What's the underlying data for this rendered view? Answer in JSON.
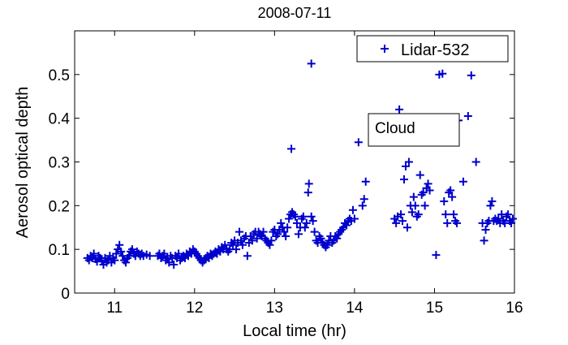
{
  "chart_data": {
    "type": "scatter",
    "title": "2008-07-11",
    "xlabel": "Local time (hr)",
    "ylabel": "Aerosol optical depth",
    "xlim": [
      10.5,
      16
    ],
    "ylim": [
      0,
      0.6
    ],
    "xticks": [
      11,
      12,
      13,
      14,
      15,
      16
    ],
    "yticks": [
      0,
      0.1,
      0.2,
      0.3,
      0.4,
      0.5
    ],
    "xtick_labels": [
      "11",
      "12",
      "13",
      "14",
      "15",
      "16"
    ],
    "ytick_labels": [
      "0",
      "0.1",
      "0.2",
      "0.3",
      "0.4",
      "0.5"
    ],
    "grid": false,
    "legend": {
      "placement": "top-right",
      "entries": [
        "Lidar-532"
      ]
    },
    "annotation": "Cloud",
    "series": [
      {
        "name": "Lidar-532",
        "marker": "+",
        "color": "#0000cc",
        "points": [
          [
            10.66,
            0.08
          ],
          [
            10.68,
            0.075
          ],
          [
            10.7,
            0.085
          ],
          [
            10.72,
            0.08
          ],
          [
            10.74,
            0.09
          ],
          [
            10.76,
            0.078
          ],
          [
            10.78,
            0.072
          ],
          [
            10.8,
            0.085
          ],
          [
            10.82,
            0.08
          ],
          [
            10.84,
            0.075
          ],
          [
            10.86,
            0.065
          ],
          [
            10.88,
            0.08
          ],
          [
            10.9,
            0.07
          ],
          [
            10.92,
            0.075
          ],
          [
            10.94,
            0.085
          ],
          [
            10.96,
            0.07
          ],
          [
            10.98,
            0.08
          ],
          [
            11.0,
            0.075
          ],
          [
            11.02,
            0.09
          ],
          [
            11.04,
            0.1
          ],
          [
            11.06,
            0.11
          ],
          [
            11.08,
            0.095
          ],
          [
            11.1,
            0.085
          ],
          [
            11.12,
            0.075
          ],
          [
            11.14,
            0.07
          ],
          [
            11.16,
            0.08
          ],
          [
            11.18,
            0.085
          ],
          [
            11.2,
            0.095
          ],
          [
            11.22,
            0.1
          ],
          [
            11.24,
            0.09
          ],
          [
            11.26,
            0.085
          ],
          [
            11.28,
            0.095
          ],
          [
            11.3,
            0.09
          ],
          [
            11.32,
            0.085
          ],
          [
            11.34,
            0.09
          ],
          [
            11.36,
            0.085
          ],
          [
            11.4,
            0.088
          ],
          [
            11.44,
            0.085
          ],
          [
            11.54,
            0.085
          ],
          [
            11.56,
            0.09
          ],
          [
            11.58,
            0.08
          ],
          [
            11.6,
            0.085
          ],
          [
            11.62,
            0.09
          ],
          [
            11.64,
            0.075
          ],
          [
            11.66,
            0.08
          ],
          [
            11.68,
            0.07
          ],
          [
            11.7,
            0.085
          ],
          [
            11.72,
            0.08
          ],
          [
            11.74,
            0.065
          ],
          [
            11.76,
            0.085
          ],
          [
            11.78,
            0.08
          ],
          [
            11.8,
            0.09
          ],
          [
            11.82,
            0.075
          ],
          [
            11.84,
            0.08
          ],
          [
            11.86,
            0.085
          ],
          [
            11.88,
            0.08
          ],
          [
            11.9,
            0.09
          ],
          [
            11.92,
            0.085
          ],
          [
            11.94,
            0.095
          ],
          [
            11.96,
            0.09
          ],
          [
            11.98,
            0.1
          ],
          [
            12.0,
            0.095
          ],
          [
            12.02,
            0.09
          ],
          [
            12.04,
            0.085
          ],
          [
            12.06,
            0.08
          ],
          [
            12.08,
            0.075
          ],
          [
            12.1,
            0.07
          ],
          [
            12.12,
            0.075
          ],
          [
            12.14,
            0.08
          ],
          [
            12.16,
            0.085
          ],
          [
            12.18,
            0.08
          ],
          [
            12.2,
            0.09
          ],
          [
            12.22,
            0.085
          ],
          [
            12.24,
            0.09
          ],
          [
            12.26,
            0.095
          ],
          [
            12.28,
            0.09
          ],
          [
            12.3,
            0.1
          ],
          [
            12.32,
            0.095
          ],
          [
            12.34,
            0.105
          ],
          [
            12.36,
            0.1
          ],
          [
            12.38,
            0.11
          ],
          [
            12.4,
            0.1
          ],
          [
            12.42,
            0.095
          ],
          [
            12.44,
            0.1
          ],
          [
            12.46,
            0.115
          ],
          [
            12.48,
            0.11
          ],
          [
            12.5,
            0.12
          ],
          [
            12.52,
            0.1
          ],
          [
            12.54,
            0.115
          ],
          [
            12.56,
            0.14
          ],
          [
            12.58,
            0.12
          ],
          [
            12.6,
            0.11
          ],
          [
            12.62,
            0.125
          ],
          [
            12.64,
            0.13
          ],
          [
            12.66,
            0.085
          ],
          [
            12.68,
            0.115
          ],
          [
            12.7,
            0.13
          ],
          [
            12.72,
            0.12
          ],
          [
            12.74,
            0.135
          ],
          [
            12.76,
            0.14
          ],
          [
            12.78,
            0.125
          ],
          [
            12.8,
            0.14
          ],
          [
            12.82,
            0.135
          ],
          [
            12.84,
            0.13
          ],
          [
            12.86,
            0.14
          ],
          [
            12.88,
            0.125
          ],
          [
            12.9,
            0.12
          ],
          [
            12.92,
            0.115
          ],
          [
            12.94,
            0.11
          ],
          [
            12.96,
            0.12
          ],
          [
            12.98,
            0.14
          ],
          [
            13.0,
            0.145
          ],
          [
            13.02,
            0.13
          ],
          [
            13.04,
            0.135
          ],
          [
            13.06,
            0.145
          ],
          [
            13.08,
            0.16
          ],
          [
            13.1,
            0.15
          ],
          [
            13.12,
            0.14
          ],
          [
            13.14,
            0.13
          ],
          [
            13.16,
            0.15
          ],
          [
            13.21,
            0.33
          ],
          [
            13.18,
            0.17
          ],
          [
            13.2,
            0.18
          ],
          [
            13.22,
            0.185
          ],
          [
            13.24,
            0.18
          ],
          [
            13.26,
            0.175
          ],
          [
            13.28,
            0.16
          ],
          [
            13.3,
            0.135
          ],
          [
            13.32,
            0.15
          ],
          [
            13.34,
            0.17
          ],
          [
            13.36,
            0.175
          ],
          [
            13.38,
            0.15
          ],
          [
            13.4,
            0.16
          ],
          [
            13.42,
            0.23
          ],
          [
            13.43,
            0.25
          ],
          [
            13.46,
            0.525
          ],
          [
            13.46,
            0.175
          ],
          [
            13.48,
            0.165
          ],
          [
            13.5,
            0.14
          ],
          [
            13.52,
            0.12
          ],
          [
            13.54,
            0.115
          ],
          [
            13.56,
            0.13
          ],
          [
            13.58,
            0.125
          ],
          [
            13.6,
            0.115
          ],
          [
            13.62,
            0.11
          ],
          [
            13.64,
            0.105
          ],
          [
            13.66,
            0.11
          ],
          [
            13.68,
            0.12
          ],
          [
            13.7,
            0.13
          ],
          [
            13.72,
            0.115
          ],
          [
            13.74,
            0.12
          ],
          [
            13.76,
            0.13
          ],
          [
            13.78,
            0.125
          ],
          [
            13.8,
            0.135
          ],
          [
            13.82,
            0.14
          ],
          [
            13.84,
            0.145
          ],
          [
            13.86,
            0.15
          ],
          [
            13.88,
            0.16
          ],
          [
            13.9,
            0.155
          ],
          [
            13.92,
            0.165
          ],
          [
            13.94,
            0.17
          ],
          [
            13.96,
            0.165
          ],
          [
            13.98,
            0.19
          ],
          [
            14.0,
            0.17
          ],
          [
            14.05,
            0.345
          ],
          [
            14.1,
            0.2
          ],
          [
            14.12,
            0.215
          ],
          [
            14.14,
            0.255
          ],
          [
            14.5,
            0.17
          ],
          [
            14.52,
            0.16
          ],
          [
            14.54,
            0.175
          ],
          [
            14.56,
            0.42
          ],
          [
            14.58,
            0.18
          ],
          [
            14.6,
            0.165
          ],
          [
            14.62,
            0.26
          ],
          [
            14.64,
            0.29
          ],
          [
            14.66,
            0.15
          ],
          [
            14.68,
            0.3
          ],
          [
            14.7,
            0.2
          ],
          [
            14.72,
            0.185
          ],
          [
            14.74,
            0.22
          ],
          [
            14.76,
            0.2
          ],
          [
            14.78,
            0.175
          ],
          [
            14.8,
            0.18
          ],
          [
            14.82,
            0.27
          ],
          [
            14.84,
            0.225
          ],
          [
            14.86,
            0.23
          ],
          [
            14.88,
            0.2
          ],
          [
            14.9,
            0.24
          ],
          [
            14.92,
            0.25
          ],
          [
            14.94,
            0.235
          ],
          [
            15.02,
            0.087
          ],
          [
            15.06,
            0.5
          ],
          [
            15.1,
            0.502
          ],
          [
            15.12,
            0.21
          ],
          [
            15.14,
            0.18
          ],
          [
            15.16,
            0.16
          ],
          [
            15.18,
            0.23
          ],
          [
            15.2,
            0.235
          ],
          [
            15.22,
            0.22
          ],
          [
            15.24,
            0.18
          ],
          [
            15.26,
            0.165
          ],
          [
            15.28,
            0.16
          ],
          [
            15.3,
            0.395
          ],
          [
            15.36,
            0.255
          ],
          [
            15.42,
            0.405
          ],
          [
            15.46,
            0.498
          ],
          [
            15.52,
            0.3
          ],
          [
            15.6,
            0.16
          ],
          [
            15.62,
            0.12
          ],
          [
            15.64,
            0.145
          ],
          [
            15.66,
            0.16
          ],
          [
            15.68,
            0.165
          ],
          [
            15.7,
            0.2
          ],
          [
            15.72,
            0.21
          ],
          [
            15.74,
            0.165
          ],
          [
            15.76,
            0.17
          ],
          [
            15.78,
            0.165
          ],
          [
            15.8,
            0.17
          ],
          [
            15.82,
            0.16
          ],
          [
            15.84,
            0.18
          ],
          [
            15.86,
            0.165
          ],
          [
            15.88,
            0.16
          ],
          [
            15.9,
            0.175
          ],
          [
            15.92,
            0.18
          ],
          [
            15.94,
            0.165
          ],
          [
            15.96,
            0.16
          ],
          [
            15.98,
            0.17
          ]
        ]
      }
    ]
  }
}
